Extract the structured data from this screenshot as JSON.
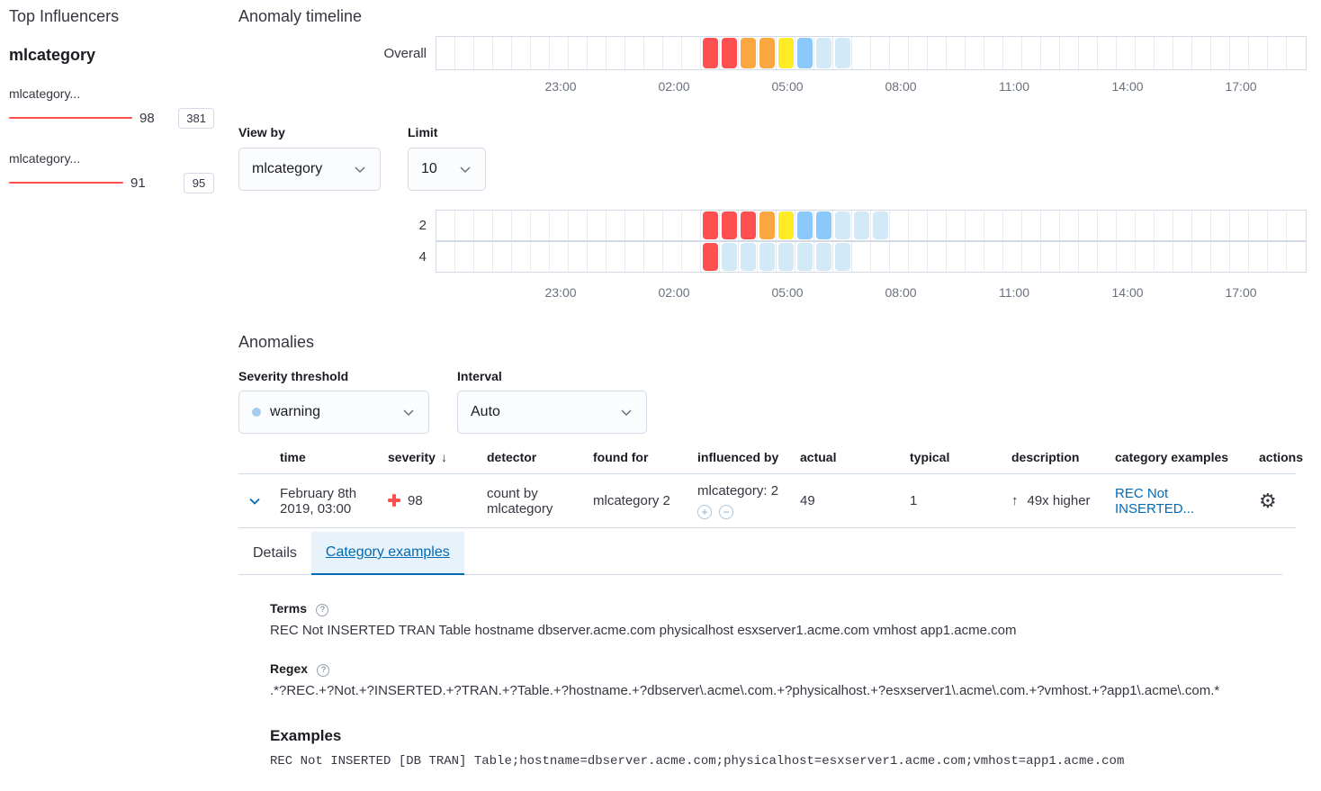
{
  "severity_colors": {
    "critical": "#fe5050",
    "major": "#fba740",
    "minor": "#fdec25",
    "warning": "#8bc8fb",
    "low": "#d2e9f7"
  },
  "top_influencers": {
    "title": "Top Influencers",
    "field": "mlcategory",
    "items": [
      {
        "name": "mlcategory...",
        "score": 98,
        "badge": "381"
      },
      {
        "name": "mlcategory...",
        "score": 91,
        "badge": "95"
      }
    ]
  },
  "timeline": {
    "title": "Anomaly timeline",
    "cell_count": 46,
    "axis": [
      {
        "label": "23:00",
        "offset": 129
      },
      {
        "label": "02:00",
        "offset": 255
      },
      {
        "label": "05:00",
        "offset": 381
      },
      {
        "label": "08:00",
        "offset": 507
      },
      {
        "label": "11:00",
        "offset": 633
      },
      {
        "label": "14:00",
        "offset": 759
      },
      {
        "label": "17:00",
        "offset": 885
      }
    ],
    "overall_lane": {
      "label": "Overall",
      "start": 14,
      "severities": [
        "critical",
        "critical",
        "major",
        "major",
        "minor",
        "warning",
        "low",
        "low"
      ]
    },
    "view_by": {
      "label": "View by",
      "value": "mlcategory"
    },
    "limit": {
      "label": "Limit",
      "value": "10"
    },
    "lanes": [
      {
        "label": "2",
        "start": 14,
        "severities": [
          "critical",
          "critical",
          "critical",
          "major",
          "minor",
          "warning",
          "warning",
          "low",
          "low",
          "low"
        ]
      },
      {
        "label": "4",
        "start": 14,
        "severities": [
          "critical",
          "low",
          "low",
          "low",
          "low",
          "low",
          "low",
          "low"
        ]
      }
    ]
  },
  "anomalies": {
    "title": "Anomalies",
    "severity_threshold": {
      "label": "Severity threshold",
      "value": "warning"
    },
    "interval": {
      "label": "Interval",
      "value": "Auto"
    },
    "table": {
      "columns": [
        "time",
        "severity",
        "detector",
        "found for",
        "influenced by",
        "actual",
        "typical",
        "description",
        "category examples",
        "actions"
      ],
      "sorted_column": "severity",
      "row": {
        "time_line1": "February 8th",
        "time_line2": "2019, 03:00",
        "severity": "98",
        "detector": "count by mlcategory",
        "found_for": "mlcategory 2",
        "influenced_by": "mlcategory: 2",
        "actual": "49",
        "typical": "1",
        "description": "49x higher",
        "category_examples": "REC Not INSERTED..."
      }
    },
    "tabs": [
      {
        "label": "Details"
      },
      {
        "label": "Category examples"
      }
    ],
    "details": {
      "terms_label": "Terms",
      "terms": "REC Not INSERTED TRAN Table hostname dbserver.acme.com physicalhost esxserver1.acme.com vmhost app1.acme.com",
      "regex_label": "Regex",
      "regex": ".*?REC.+?Not.+?INSERTED.+?TRAN.+?Table.+?hostname.+?dbserver\\.acme\\.com.+?physicalhost.+?esxserver1\\.acme\\.com.+?vmhost.+?app1\\.acme\\.com.*",
      "examples_label": "Examples",
      "example": "REC Not INSERTED [DB TRAN] Table;hostname=dbserver.acme.com;physicalhost=esxserver1.acme.com;vmhost=app1.acme.com"
    }
  }
}
